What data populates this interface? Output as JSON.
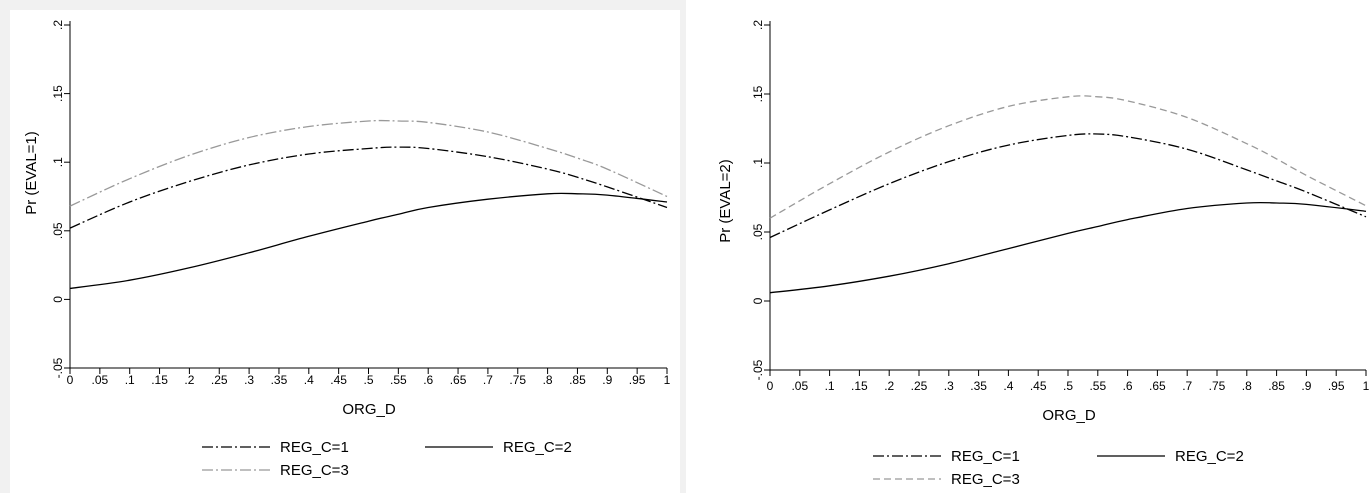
{
  "chart_data": [
    {
      "type": "line",
      "xlabel": "ORG_D",
      "ylabel": "Pr (EVAL=1)",
      "xlim": [
        0,
        1
      ],
      "ylim": [
        -0.05,
        0.2
      ],
      "x_ticks": [
        0,
        0.05,
        0.1,
        0.15,
        0.2,
        0.25,
        0.3,
        0.35,
        0.4,
        0.45,
        0.5,
        0.55,
        0.6,
        0.65,
        0.7,
        0.75,
        0.8,
        0.85,
        0.9,
        0.95,
        1
      ],
      "x_tick_labels": [
        "0",
        ".05",
        ".1",
        ".15",
        ".2",
        ".25",
        ".3",
        ".35",
        ".4",
        ".45",
        ".5",
        ".55",
        ".6",
        ".65",
        ".7",
        ".75",
        ".8",
        ".85",
        ".9",
        ".95",
        "1"
      ],
      "y_ticks": [
        -0.05,
        0,
        0.05,
        0.1,
        0.15,
        0.2
      ],
      "y_tick_labels": [
        "-.05",
        "0",
        ".05",
        ".1",
        ".15",
        ".2"
      ],
      "grid": false,
      "legend_position": "bottom",
      "x": [
        0,
        0.1,
        0.2,
        0.3,
        0.4,
        0.5,
        0.55,
        0.6,
        0.7,
        0.8,
        0.85,
        0.9,
        1
      ],
      "series": [
        {
          "name": "REG_C=1",
          "color": "#000000",
          "dash": "dash-dot",
          "values": [
            0.052,
            0.071,
            0.086,
            0.098,
            0.106,
            0.11,
            0.111,
            0.11,
            0.104,
            0.095,
            0.089,
            0.082,
            0.067
          ]
        },
        {
          "name": "REG_C=2",
          "color": "#000000",
          "dash": "solid",
          "values": [
            0.008,
            0.014,
            0.023,
            0.034,
            0.046,
            0.057,
            0.062,
            0.067,
            0.073,
            0.077,
            0.077,
            0.076,
            0.071
          ]
        },
        {
          "name": "REG_C=3",
          "color": "#999999",
          "dash": "dash-dot",
          "values": [
            0.068,
            0.088,
            0.105,
            0.118,
            0.126,
            0.13,
            0.13,
            0.129,
            0.122,
            0.11,
            0.103,
            0.095,
            0.075
          ]
        }
      ]
    },
    {
      "type": "line",
      "xlabel": "ORG_D",
      "ylabel": "Pr (EVAL=2)",
      "xlim": [
        0,
        1
      ],
      "ylim": [
        -0.05,
        0.2
      ],
      "x_ticks": [
        0,
        0.05,
        0.1,
        0.15,
        0.2,
        0.25,
        0.3,
        0.35,
        0.4,
        0.45,
        0.5,
        0.55,
        0.6,
        0.65,
        0.7,
        0.75,
        0.8,
        0.85,
        0.9,
        0.95,
        1
      ],
      "x_tick_labels": [
        "0",
        ".05",
        ".1",
        ".15",
        ".2",
        ".25",
        ".3",
        ".35",
        ".4",
        ".45",
        ".5",
        ".55",
        ".6",
        ".65",
        ".7",
        ".75",
        ".8",
        ".85",
        ".9",
        ".95",
        "1"
      ],
      "y_ticks": [
        -0.05,
        0,
        0.05,
        0.1,
        0.15,
        0.2
      ],
      "y_tick_labels": [
        "-.05",
        "0",
        ".05",
        ".1",
        ".15",
        ".2"
      ],
      "grid": false,
      "legend_position": "bottom",
      "x": [
        0,
        0.1,
        0.2,
        0.3,
        0.4,
        0.5,
        0.55,
        0.6,
        0.7,
        0.8,
        0.85,
        0.9,
        1
      ],
      "series": [
        {
          "name": "REG_C=1",
          "color": "#000000",
          "dash": "dash-dot",
          "values": [
            0.046,
            0.066,
            0.085,
            0.101,
            0.113,
            0.12,
            0.121,
            0.119,
            0.11,
            0.095,
            0.087,
            0.079,
            0.061
          ]
        },
        {
          "name": "REG_C=2",
          "color": "#000000",
          "dash": "solid",
          "values": [
            0.006,
            0.011,
            0.018,
            0.027,
            0.038,
            0.049,
            0.054,
            0.059,
            0.067,
            0.071,
            0.071,
            0.07,
            0.065
          ]
        },
        {
          "name": "REG_C=3",
          "color": "#999999",
          "dash": "dashed",
          "values": [
            0.06,
            0.085,
            0.108,
            0.127,
            0.141,
            0.148,
            0.148,
            0.145,
            0.133,
            0.114,
            0.103,
            0.091,
            0.069
          ]
        }
      ]
    }
  ]
}
